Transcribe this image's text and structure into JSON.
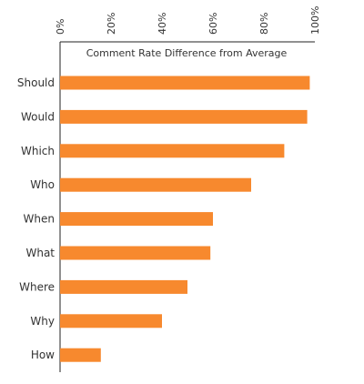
{
  "chart_data": {
    "type": "bar",
    "orientation": "horizontal",
    "title": "Comment Rate Difference from Average",
    "xlabel": "",
    "ylabel": "",
    "categories": [
      "Should",
      "Would",
      "Which",
      "Who",
      "When",
      "What",
      "Where",
      "Why",
      "How"
    ],
    "values": [
      98,
      97,
      88,
      75,
      60,
      59,
      50,
      40,
      16
    ],
    "xlim": [
      0,
      100
    ],
    "ticks": [
      "0%",
      "20%",
      "40%",
      "60%",
      "80%",
      "100%"
    ],
    "tick_values": [
      0,
      20,
      40,
      60,
      80,
      100
    ],
    "tick_position": "top",
    "grid": false,
    "bar_color": "#F7892E"
  }
}
